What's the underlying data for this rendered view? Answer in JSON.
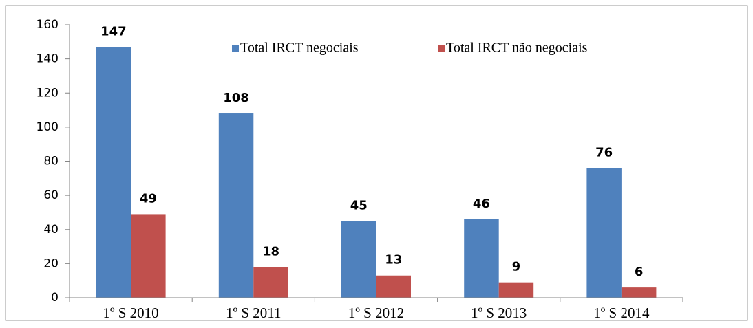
{
  "chart_data": {
    "type": "bar",
    "categories": [
      "1º S 2010",
      "1º S 2011",
      "1º S 2012",
      "1º S 2013",
      "1º S 2014"
    ],
    "series": [
      {
        "name": "Total IRCT negociais",
        "color": "#4f81bd",
        "values": [
          147,
          108,
          45,
          46,
          76
        ]
      },
      {
        "name": "Total IRCT não negociais",
        "color": "#c0504d",
        "values": [
          49,
          18,
          13,
          9,
          6
        ]
      }
    ],
    "ylim": [
      0,
      160
    ],
    "yticks": [
      0,
      20,
      40,
      60,
      80,
      100,
      120,
      140,
      160
    ],
    "grid": false,
    "legend": "top"
  }
}
